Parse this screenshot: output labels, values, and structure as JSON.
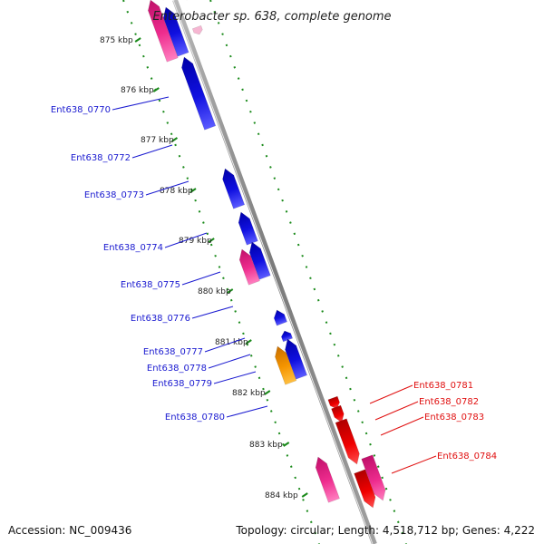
{
  "title": "Enterobacter sp. 638, complete genome",
  "footer": {
    "accession": "Accession: NC_009436",
    "summary": "Topology: circular; Length: 4,518,712 bp; Genes: 4,222"
  },
  "colors": {
    "forward_cds": "#1a1adc",
    "reverse_cds": "#e00000",
    "rna_pink": "#ee2c8e",
    "rna_orange": "#f08c00",
    "tick_green": "#1a8a1a",
    "backbone": "#8c8c8c"
  },
  "kbp_marks": [
    "875 kbp",
    "876 kbp",
    "877 kbp",
    "878 kbp",
    "879 kbp",
    "880 kbp",
    "881 kbp",
    "882 kbp",
    "883 kbp",
    "884 kbp"
  ],
  "left_labels": [
    "Ent638_0770",
    "Ent638_0772",
    "Ent638_0773",
    "Ent638_0774",
    "Ent638_0775",
    "Ent638_0776",
    "Ent638_0777",
    "Ent638_0778",
    "Ent638_0779",
    "Ent638_0780"
  ],
  "right_labels": [
    "Ent638_0781",
    "Ent638_0782",
    "Ent638_0783",
    "Ent638_0784"
  ]
}
